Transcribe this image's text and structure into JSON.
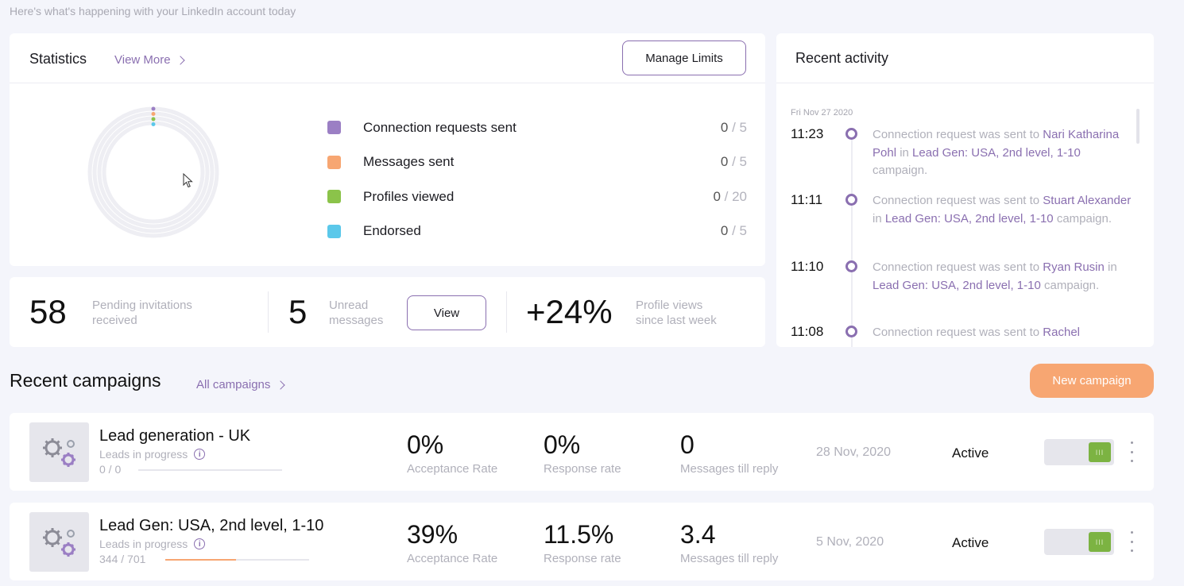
{
  "header": {
    "subtitle": "Here's what's happening with your LinkedIn account today"
  },
  "statistics": {
    "title": "Statistics",
    "view_more": "View More",
    "manage_limits": "Manage Limits",
    "rows": [
      {
        "label": "Connection requests sent",
        "value": "0",
        "limit": " / 5",
        "color": "#9b7fc4"
      },
      {
        "label": "Messages sent",
        "value": "0",
        "limit": " / 5",
        "color": "#f7a672"
      },
      {
        "label": "Profiles viewed",
        "value": "0",
        "limit": " / 20",
        "color": "#8bc34a"
      },
      {
        "label": "Endorsed",
        "value": "0",
        "limit": " / 5",
        "color": "#5bc8ea"
      }
    ]
  },
  "summary": {
    "pending_count": "58",
    "pending_label_1": "Pending invitations",
    "pending_label_2": "received",
    "unread_count": "5",
    "unread_label_1": "Unread",
    "unread_label_2": "messages",
    "view_button": "View",
    "profile_views_change": "+24%",
    "profile_views_label_1": "Profile views",
    "profile_views_label_2": "since last week"
  },
  "activity": {
    "title": "Recent activity",
    "date": "Fri Nov 27 2020",
    "items": [
      {
        "time": "11:23",
        "text_1": "Connection request was sent to ",
        "person": "Nari Katharina Pohl",
        "text_2": " in ",
        "campaign": "Lead Gen: USA, 2nd level, 1-10",
        "text_3": " campaign."
      },
      {
        "time": "11:11",
        "text_1": "Connection request was sent to ",
        "person": "Stuart Alexander",
        "text_2": " in ",
        "campaign": "Lead Gen: USA, 2nd level, 1-10",
        "text_3": " campaign."
      },
      {
        "time": "11:10",
        "text_1": "Connection request was sent to ",
        "person": "Ryan Rusin",
        "text_2": " in ",
        "campaign": "Lead Gen: USA, 2nd level, 1-10",
        "text_3": " campaign."
      },
      {
        "time": "11:08",
        "text_1": "Connection request was sent to ",
        "person": "Rachel",
        "text_2": "",
        "campaign": "",
        "text_3": ""
      }
    ]
  },
  "campaigns": {
    "title": "Recent campaigns",
    "all_link": "All campaigns",
    "new_button": "New campaign",
    "leads_label": "Leads in progress",
    "list": [
      {
        "name": "Lead generation - UK",
        "leads": "0 / 0",
        "lead_progress": 0,
        "acceptance": "0%",
        "acceptance_label": "Acceptance Rate",
        "response": "0%",
        "response_label": "Response rate",
        "messages": "0",
        "messages_label": "Messages till reply",
        "date": "28 Nov, 2020",
        "status": "Active",
        "toggle_on": true
      },
      {
        "name": "Lead Gen: USA, 2nd level, 1-10",
        "leads": "344 / 701",
        "lead_progress": 0.49,
        "acceptance": "39%",
        "acceptance_label": "Acceptance Rate",
        "response": "11.5%",
        "response_label": "Response rate",
        "messages": "3.4",
        "messages_label": "Messages till reply",
        "date": "5 Nov, 2020",
        "status": "Active",
        "toggle_on": true
      }
    ]
  }
}
